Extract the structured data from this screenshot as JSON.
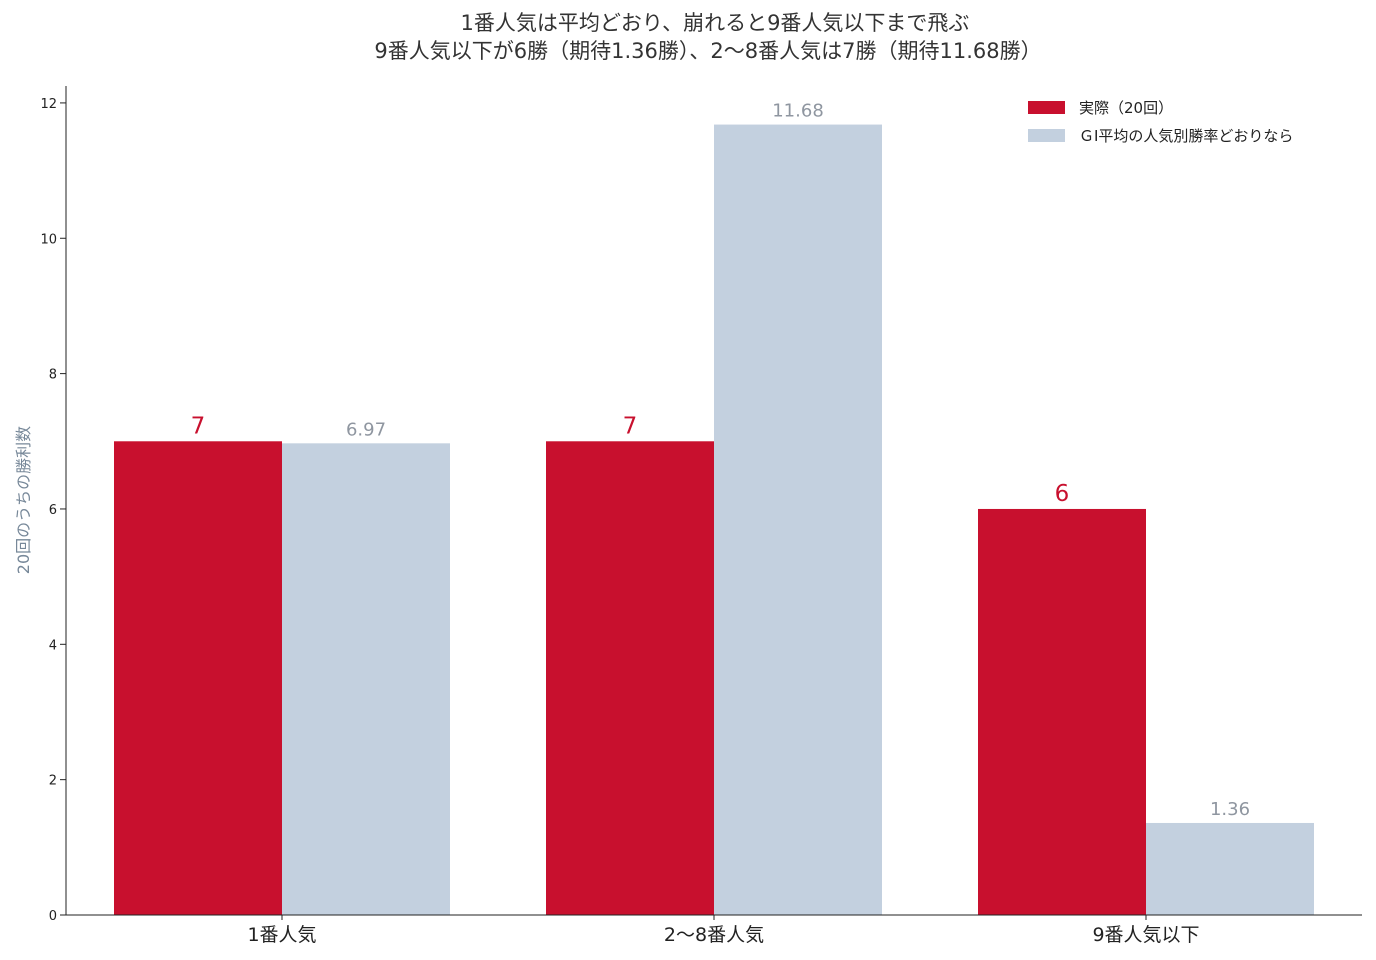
{
  "chart_data": {
    "type": "bar",
    "title": [
      "1番人気は平均どおり、崩れると9番人気以下まで飛ぶ",
      "9番人気以下が6勝（期待1.36勝）、2〜8番人気は7勝（期待11.68勝）"
    ],
    "xlabel": "",
    "ylabel": "20回のうちの勝利数",
    "ylim": [
      0,
      12.25
    ],
    "yticks": [
      "0",
      "2",
      "4",
      "6",
      "8",
      "10",
      "12"
    ],
    "categories": [
      "1番人気",
      "2〜8番人気",
      "9番人気以下"
    ],
    "series": [
      {
        "name": "実際（20回）",
        "color": "#c8102e",
        "values": [
          7,
          7,
          6
        ],
        "labels": [
          "7",
          "7",
          "6"
        ]
      },
      {
        "name": "ＧⅠ平均の人気別勝率どおりなら",
        "color": "#c3d0df",
        "values": [
          6.97,
          11.68,
          1.36
        ],
        "labels": [
          "6.97",
          "11.68",
          "1.36"
        ]
      }
    ],
    "label_colors": [
      "#c8102e",
      "#8f96a0"
    ],
    "grid": false,
    "legend": "top-right"
  }
}
